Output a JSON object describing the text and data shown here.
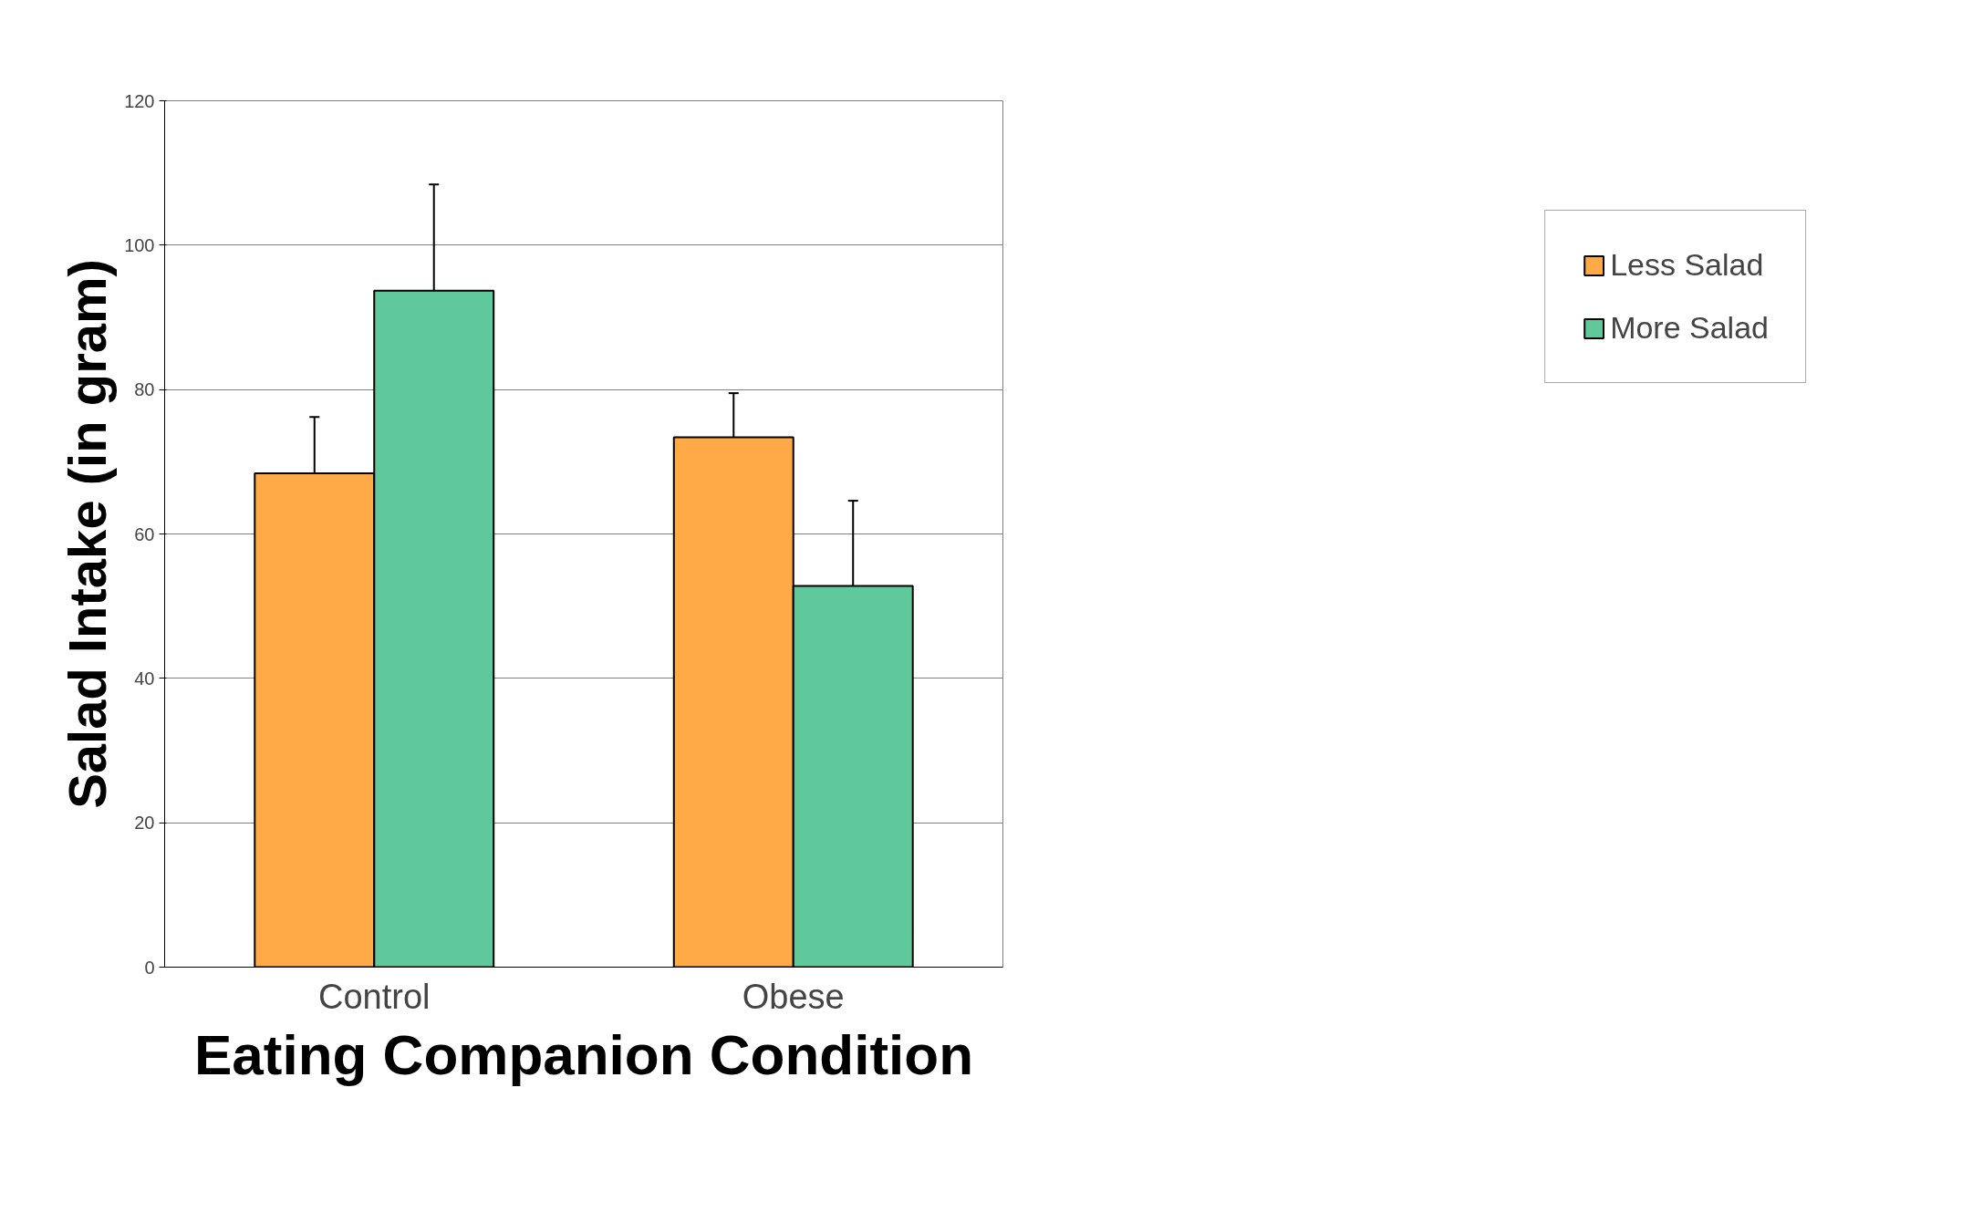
{
  "chart_data": {
    "type": "bar",
    "xlabel": "Eating Companion Condition",
    "ylabel": "Salad Intake (in gram)",
    "categories": [
      "Control",
      "Obese"
    ],
    "series": [
      {
        "name": "Less Salad",
        "color": "#ffa947",
        "values": [
          68.4,
          73.4
        ],
        "errors": [
          [
            68.4,
            76.2
          ],
          [
            73.4,
            79.5
          ]
        ]
      },
      {
        "name": "More Salad",
        "color": "#5fc99b",
        "values": [
          93.7,
          52.8
        ],
        "errors": [
          [
            93.7,
            108.4
          ],
          [
            52.8,
            64.6
          ]
        ]
      }
    ],
    "ylim": [
      0,
      120
    ],
    "yticks": [
      0,
      20,
      40,
      60,
      80,
      100,
      120
    ],
    "grid": "y",
    "legend": "right"
  }
}
